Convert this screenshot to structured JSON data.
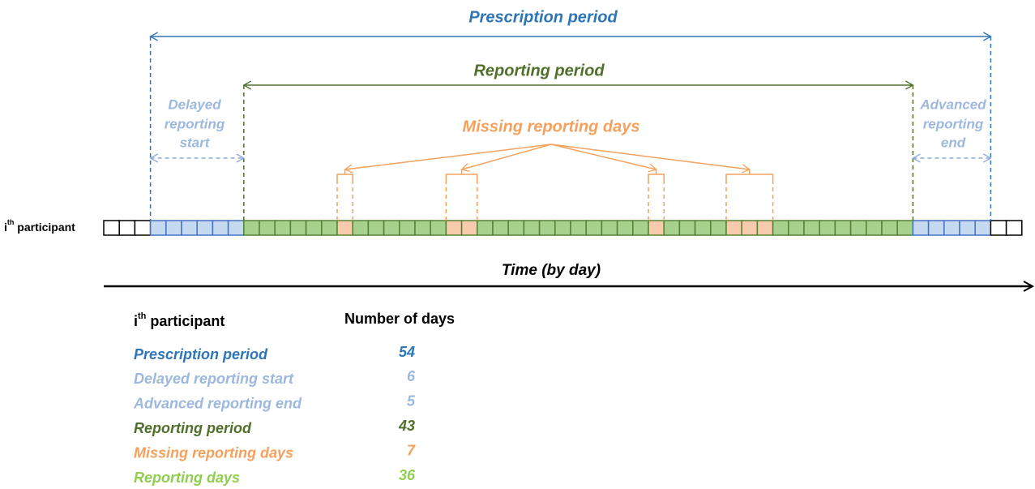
{
  "diagram": {
    "prescription_period": "Prescription period",
    "reporting_period": "Reporting period",
    "delayed_start": [
      "Delayed",
      "reporting",
      "start"
    ],
    "advanced_end": [
      "Advanced",
      "reporting",
      "end"
    ],
    "missing_days": "Missing reporting days",
    "participant": {
      "base": "i",
      "sup": "th",
      "text": " participant"
    },
    "time_axis": "Time (by day)"
  },
  "table": {
    "header": {
      "participant": {
        "base": "i",
        "sup": "th",
        "text": " participant"
      },
      "value": "Number of days"
    },
    "rows": [
      {
        "label": "Prescription period",
        "value": 54
      },
      {
        "label": "Delayed reporting start",
        "value": 6
      },
      {
        "label": "Advanced reporting end",
        "value": 5
      },
      {
        "label": "Reporting period",
        "value": 43
      },
      {
        "label": "Missing reporting days",
        "value": 7
      },
      {
        "label": "Reporting days",
        "value": 36
      }
    ]
  }
}
